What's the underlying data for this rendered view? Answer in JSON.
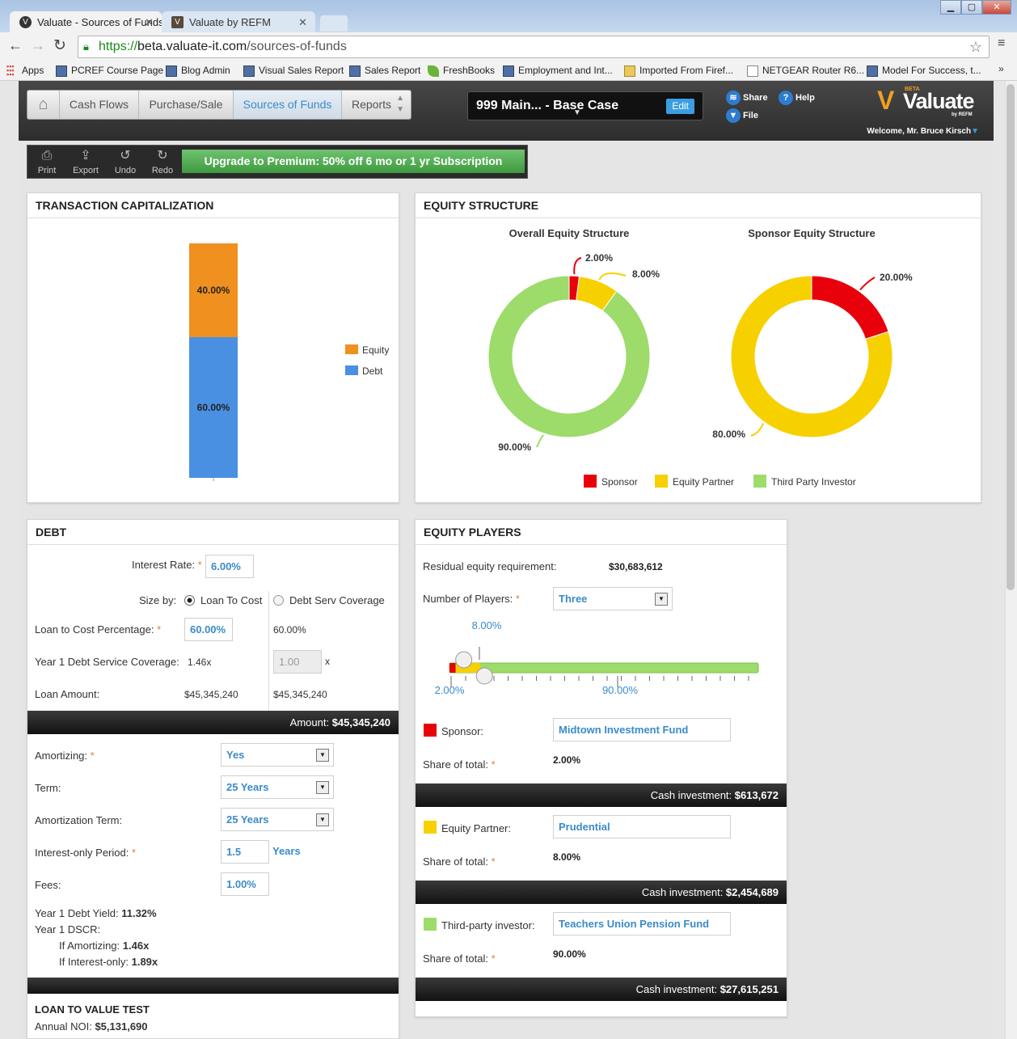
{
  "browser": {
    "tabs": [
      {
        "title": "Valuate - Sources of Funds",
        "active": true
      },
      {
        "title": "Valuate by REFM",
        "active": false
      }
    ],
    "url_scheme": "https://",
    "url_host": "beta.valuate-it.com",
    "url_path": "/sources-of-funds",
    "bookmarks": [
      "Apps",
      "PCREF Course Page",
      "Blog Admin",
      "Visual Sales Report",
      "Sales Report",
      "FreshBooks",
      "Employment and Int...",
      "Imported From Firef...",
      "NETGEAR Router R6...",
      "Model For Success, t..."
    ]
  },
  "header": {
    "nav": [
      "Cash Flows",
      "Purchase/Sale",
      "Sources of Funds",
      "Reports"
    ],
    "active_nav": "Sources of Funds",
    "deal_name": "999 Main... - Base Case",
    "edit_label": "Edit",
    "share_label": "Share",
    "help_label": "Help",
    "file_label": "File",
    "logo_text": "Valuate",
    "logo_beta": "BETA",
    "logo_by": "by REFM",
    "welcome": "Welcome, Mr. Bruce Kirsch"
  },
  "actions": {
    "print": "Print",
    "export": "Export",
    "undo": "Undo",
    "redo": "Redo",
    "upgrade": "Upgrade to Premium: 50% off 6 mo or 1 yr Subscription"
  },
  "cap_panel": {
    "title": "TRANSACTION CAPITALIZATION"
  },
  "equity_panel": {
    "title": "EQUITY STRUCTURE"
  },
  "chart_data": [
    {
      "type": "bar",
      "stacked": true,
      "categories": [
        ""
      ],
      "series": [
        {
          "name": "Debt",
          "values": [
            60
          ],
          "color": "#4a90e2",
          "label": "60.00%"
        },
        {
          "name": "Equity",
          "values": [
            40
          ],
          "color": "#f0901f",
          "label": "40.00%"
        }
      ],
      "ylim": [
        0,
        100
      ],
      "legend": "right"
    },
    {
      "type": "pie",
      "title": "Overall Equity Structure",
      "donut": true,
      "slices": [
        {
          "name": "Sponsor",
          "value": 2,
          "label": "2.00%",
          "color": "#e8000b"
        },
        {
          "name": "Equity Partner",
          "value": 8,
          "label": "8.00%",
          "color": "#f7d000"
        },
        {
          "name": "Third Party Investor",
          "value": 90,
          "label": "90.00%",
          "color": "#9ddb6a"
        }
      ]
    },
    {
      "type": "pie",
      "title": "Sponsor Equity Structure",
      "donut": true,
      "slices": [
        {
          "name": "Sponsor",
          "value": 20,
          "label": "20.00%",
          "color": "#e8000b"
        },
        {
          "name": "Equity Partner",
          "value": 80,
          "label": "80.00%",
          "color": "#f7d000"
        }
      ]
    }
  ],
  "equity_legend": [
    "Sponsor",
    "Equity Partner",
    "Third Party Investor"
  ],
  "debt": {
    "title": "DEBT",
    "interest_rate_label": "Interest Rate:",
    "interest_rate": "6.00%",
    "size_by_label": "Size by:",
    "opt_ltc": "Loan To Cost",
    "opt_dsc": "Debt Serv Coverage",
    "ltc_label": "Loan to Cost Percentage:",
    "ltc_input": "60.00%",
    "ltc_calc": "60.00%",
    "dscr_label": "Year 1 Debt Service Coverage:",
    "dscr_value": "1.46x",
    "dscr_input": "1.00",
    "dscr_unit": "x",
    "loan_amount_label": "Loan Amount:",
    "loan_amount_1": "$45,345,240",
    "loan_amount_2": "$45,345,240",
    "amount_bar_label": "Amount:",
    "amount_bar_value": "$45,345,240",
    "amortizing_label": "Amortizing:",
    "amortizing": "Yes",
    "term_label": "Term:",
    "term": "25 Years",
    "amort_term_label": "Amortization Term:",
    "amort_term": "25 Years",
    "io_label": "Interest-only Period:",
    "io_value": "1.5",
    "io_unit": "Years",
    "fees_label": "Fees:",
    "fees": "1.00%",
    "yield_label": "Year 1 Debt Yield:",
    "yield_value": "11.32%",
    "y1dscr_label": "Year 1 DSCR:",
    "if_amort_label": "If Amortizing:",
    "if_amort_value": "1.46x",
    "if_io_label": "If Interest-only:",
    "if_io_value": "1.89x",
    "ltv_title": "LOAN TO VALUE TEST",
    "noi_label": "Annual NOI:",
    "noi_value": "$5,131,690"
  },
  "players": {
    "title": "EQUITY PLAYERS",
    "residual_label": "Residual equity requirement:",
    "residual_value": "$30,683,612",
    "num_label": "Number of Players:",
    "num_value": "Three",
    "slider_top_label": "8.00%",
    "slider_left_label": "2.00%",
    "slider_mid_label": "90.00%",
    "slider": {
      "sponsor": 2,
      "partner": 8,
      "third": 90
    },
    "share_label": "Share of total:",
    "cash_label": "Cash investment:",
    "list": [
      {
        "role": "Sponsor:",
        "name": "Midtown Investment Fund",
        "share": "2.00%",
        "cash": "$613,672",
        "color": "#e8000b"
      },
      {
        "role": "Equity Partner:",
        "name": "Prudential",
        "share": "8.00%",
        "cash": "$2,454,689",
        "color": "#f7d000"
      },
      {
        "role": "Third-party investor:",
        "name": "Teachers Union Pension Fund",
        "share": "90.00%",
        "cash": "$27,615,251",
        "color": "#9ddb6a"
      }
    ]
  }
}
